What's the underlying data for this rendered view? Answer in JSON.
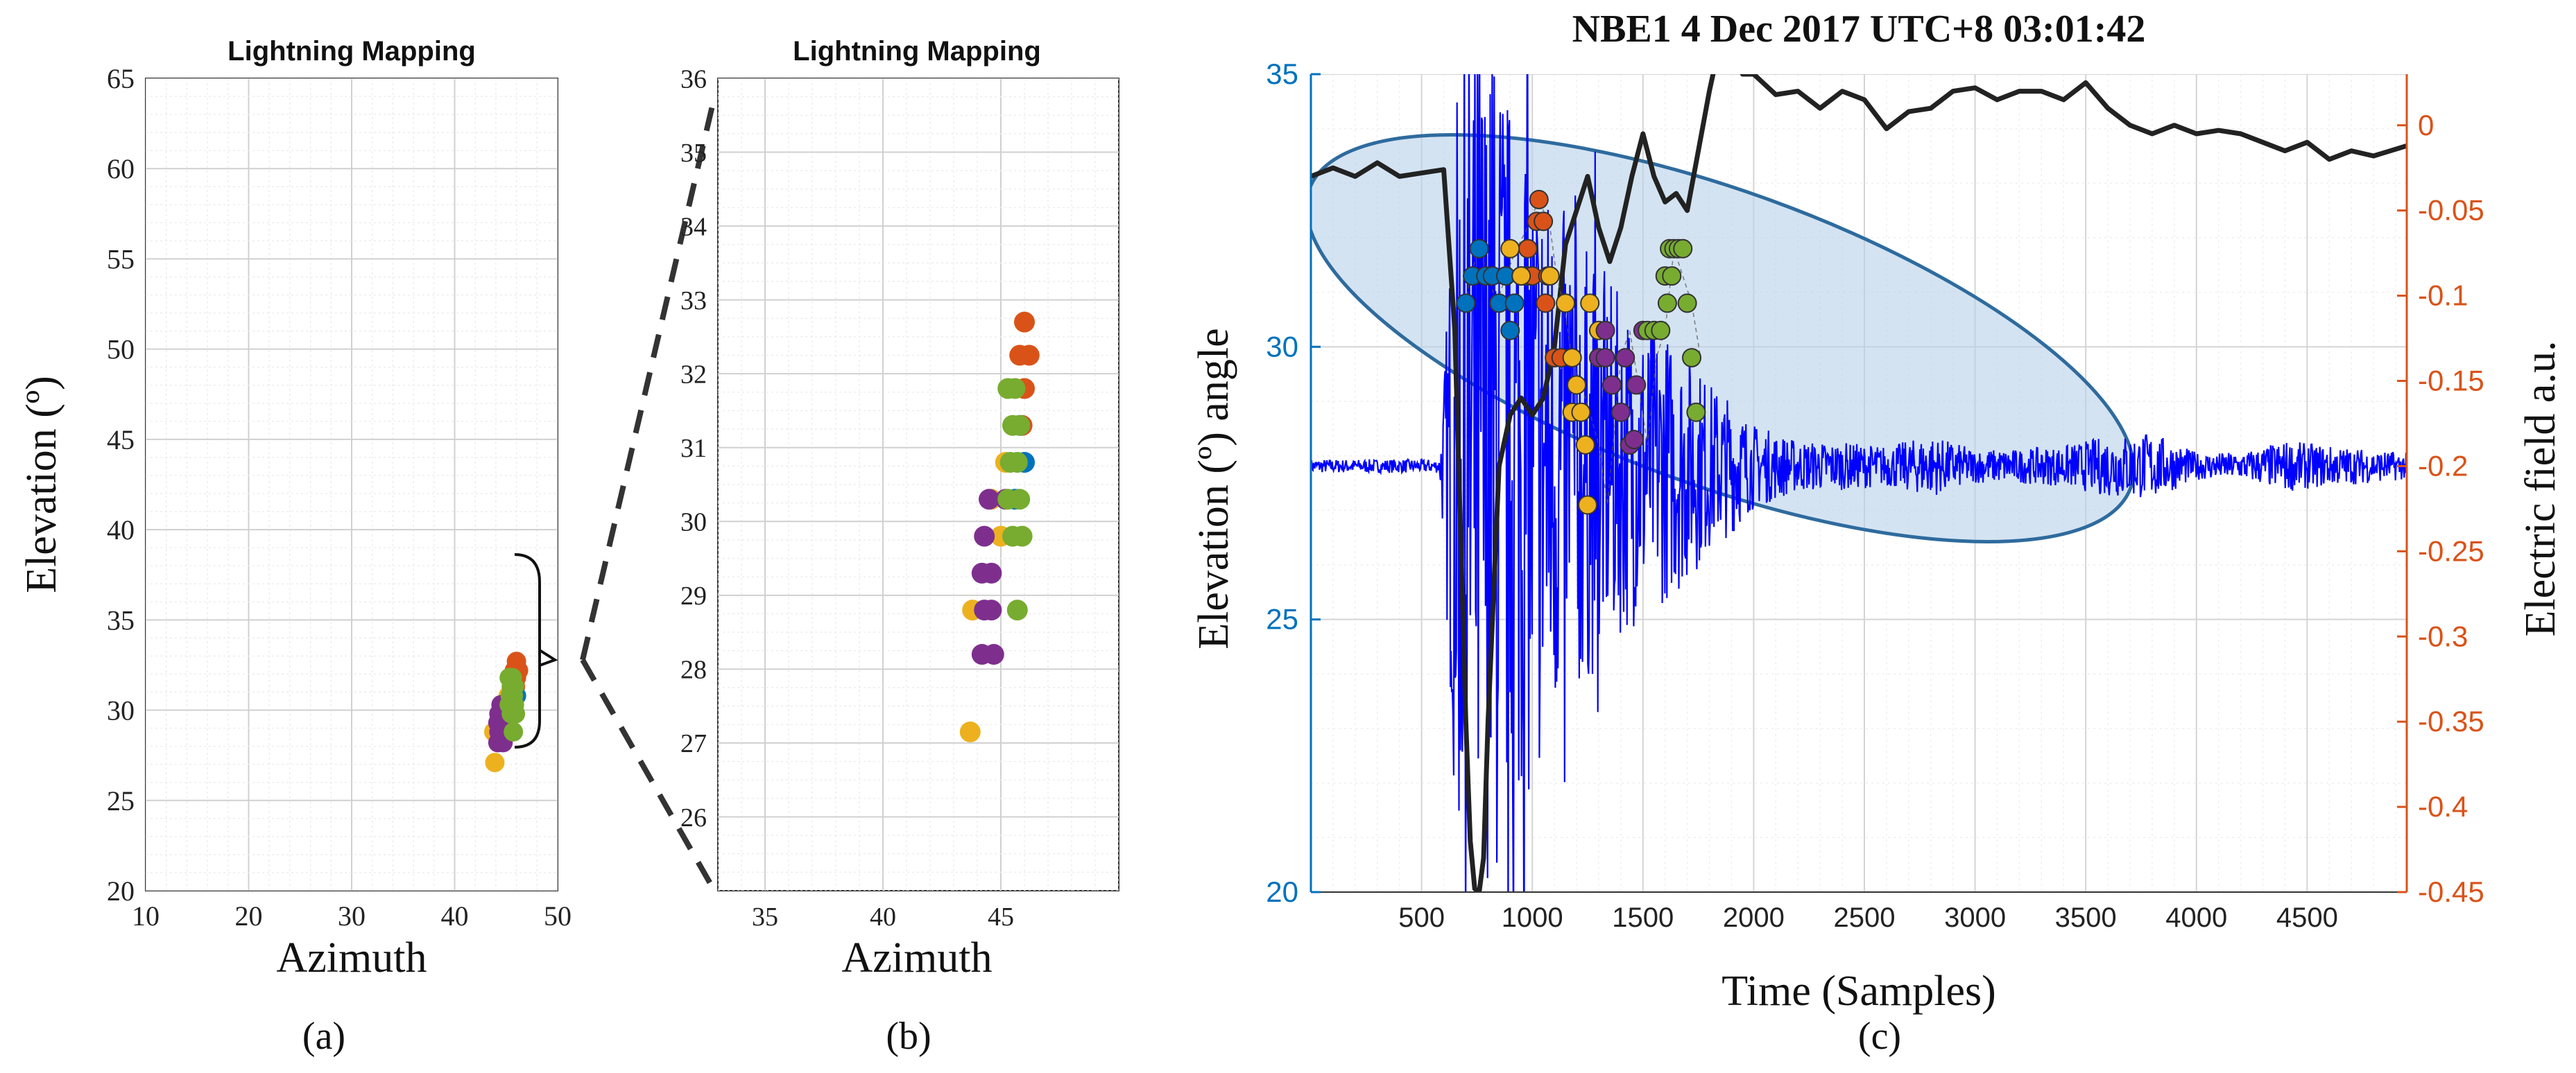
{
  "figure": {
    "captions": [
      "(a)",
      "(b)",
      "(c)"
    ]
  },
  "colors": {
    "blue": "#0072bd",
    "orange": "#d95319",
    "yellow": "#edb120",
    "purple": "#7e2f8e",
    "green": "#77ac30",
    "signal": "#0000ff",
    "efield": "#222222",
    "left_axis": "#0072bd",
    "right_axis": "#d95319",
    "ellipse_fill": "#b8d1ea",
    "ellipse_stroke": "#2e6b9e"
  },
  "chart_data": [
    {
      "id": "a",
      "type": "scatter",
      "title": "Lightning Mapping",
      "xlabel": "Azimuth",
      "ylabel": "Elevation (º)",
      "xlim": [
        10,
        50
      ],
      "ylim": [
        20,
        65
      ],
      "xticks": [
        "10",
        "20",
        "30",
        "40",
        "50"
      ],
      "yticks": [
        "20",
        "25",
        "30",
        "35",
        "40",
        "45",
        "50",
        "55",
        "60",
        "65"
      ],
      "grid": true,
      "annotation": "bracket marking the 26–34° cluster, zoomed in panel (b)",
      "series": [
        {
          "color": "orange",
          "points": [
            [
              46.0,
              32.7
            ],
            [
              45.8,
              32.2
            ],
            [
              46.2,
              32.2
            ],
            [
              46.0,
              31.8
            ],
            [
              45.9,
              31.3
            ]
          ]
        },
        {
          "color": "blue",
          "points": [
            [
              46.0,
              30.8
            ],
            [
              45.8,
              31.2
            ],
            [
              45.6,
              30.3
            ]
          ]
        },
        {
          "color": "yellow",
          "points": [
            [
              43.8,
              28.8
            ],
            [
              43.9,
              27.1
            ],
            [
              45.2,
              30.8
            ],
            [
              45.0,
              29.8
            ],
            [
              44.6,
              30.3
            ]
          ]
        },
        {
          "color": "purple",
          "points": [
            [
              44.5,
              30.3
            ],
            [
              44.3,
              29.8
            ],
            [
              44.2,
              29.3
            ],
            [
              44.6,
              29.3
            ],
            [
              44.3,
              28.8
            ],
            [
              44.6,
              28.8
            ],
            [
              44.2,
              28.2
            ],
            [
              44.7,
              28.2
            ],
            [
              45.2,
              30.3
            ]
          ]
        },
        {
          "color": "green",
          "points": [
            [
              45.3,
              31.8
            ],
            [
              45.6,
              31.8
            ],
            [
              45.5,
              31.3
            ],
            [
              45.8,
              31.3
            ],
            [
              45.4,
              30.8
            ],
            [
              45.7,
              30.8
            ],
            [
              45.3,
              30.3
            ],
            [
              45.8,
              30.3
            ],
            [
              45.5,
              29.8
            ],
            [
              45.9,
              29.8
            ],
            [
              45.7,
              28.8
            ]
          ]
        }
      ]
    },
    {
      "id": "b",
      "type": "scatter",
      "title": "Lightning Mapping",
      "xlabel": "Azimuth",
      "xlim": [
        33,
        50
      ],
      "ylim": [
        25,
        36
      ],
      "xticks": [
        "35",
        "40",
        "45"
      ],
      "yticks": [
        "26",
        "27",
        "28",
        "29",
        "30",
        "31",
        "32",
        "33",
        "34",
        "35",
        "36"
      ],
      "grid": true,
      "series": [
        {
          "color": "orange",
          "points": [
            [
              46.0,
              32.7
            ],
            [
              45.8,
              32.25
            ],
            [
              46.2,
              32.25
            ],
            [
              46.0,
              31.8
            ],
            [
              45.9,
              31.3
            ]
          ]
        },
        {
          "color": "blue",
          "points": [
            [
              46.0,
              30.8
            ],
            [
              45.8,
              31.3
            ],
            [
              45.6,
              30.3
            ]
          ]
        },
        {
          "color": "yellow",
          "points": [
            [
              43.8,
              28.8
            ],
            [
              43.7,
              27.15
            ],
            [
              45.2,
              30.8
            ],
            [
              45.0,
              29.8
            ],
            [
              44.6,
              30.3
            ]
          ]
        },
        {
          "color": "purple",
          "points": [
            [
              44.5,
              30.3
            ],
            [
              44.3,
              29.8
            ],
            [
              44.2,
              29.3
            ],
            [
              44.6,
              29.3
            ],
            [
              44.3,
              28.8
            ],
            [
              44.6,
              28.8
            ],
            [
              44.2,
              28.2
            ],
            [
              44.7,
              28.2
            ],
            [
              45.2,
              30.3
            ]
          ]
        },
        {
          "color": "green",
          "points": [
            [
              45.3,
              31.8
            ],
            [
              45.6,
              31.8
            ],
            [
              45.5,
              31.3
            ],
            [
              45.8,
              31.3
            ],
            [
              45.4,
              30.8
            ],
            [
              45.7,
              30.8
            ],
            [
              45.3,
              30.3
            ],
            [
              45.8,
              30.3
            ],
            [
              45.5,
              29.8
            ],
            [
              45.9,
              29.8
            ],
            [
              45.7,
              28.8
            ]
          ]
        }
      ]
    },
    {
      "id": "c",
      "type": "line",
      "title": "NBE1 4 Dec 2017 UTC+8 03:01:42",
      "xlabel": "Time (Samples)",
      "ylabel": "Elevation (º) angle",
      "ylabel_right": "Electric field a.u.",
      "xlim": [
        0,
        4950
      ],
      "ylim": [
        20,
        35
      ],
      "ylim_right": [
        -0.45,
        0.03
      ],
      "xticks": [
        "500",
        "1000",
        "1500",
        "2000",
        "2500",
        "3000",
        "3500",
        "4000",
        "4500"
      ],
      "yticks": [
        "20",
        "25",
        "30",
        "35"
      ],
      "yticks_right": [
        "0",
        "-0.05",
        "-0.1",
        "-0.15",
        "-0.2",
        "-0.25",
        "-0.3",
        "-0.35",
        "-0.4",
        "-0.45"
      ],
      "grid": true,
      "efield_trace": {
        "x": [
          0,
          100,
          200,
          300,
          400,
          500,
          600,
          650,
          700,
          720,
          740,
          760,
          780,
          800,
          850,
          900,
          950,
          1000,
          1050,
          1100,
          1150,
          1200,
          1250,
          1300,
          1350,
          1400,
          1450,
          1500,
          1550,
          1600,
          1650,
          1700,
          1750,
          1800,
          1850,
          1900,
          1950,
          2000,
          2100,
          2200,
          2300,
          2400,
          2500,
          2600,
          2700,
          2800,
          2900,
          3000,
          3100,
          3200,
          3300,
          3400,
          3500,
          3600,
          3700,
          3800,
          3900,
          4000,
          4100,
          4200,
          4300,
          4400,
          4500,
          4600,
          4700,
          4800,
          4950
        ],
        "y": [
          -0.03,
          -0.025,
          -0.03,
          -0.022,
          -0.03,
          -0.028,
          -0.026,
          -0.12,
          -0.35,
          -0.42,
          -0.448,
          -0.45,
          -0.43,
          -0.35,
          -0.2,
          -0.17,
          -0.16,
          -0.17,
          -0.16,
          -0.13,
          -0.07,
          -0.05,
          -0.03,
          -0.06,
          -0.08,
          -0.06,
          -0.03,
          -0.005,
          -0.03,
          -0.045,
          -0.04,
          -0.05,
          -0.015,
          0.02,
          0.05,
          0.048,
          0.03,
          0.03,
          0.018,
          0.02,
          0.01,
          0.02,
          0.015,
          -0.002,
          0.008,
          0.01,
          0.02,
          0.022,
          0.015,
          0.02,
          0.02,
          0.015,
          0.025,
          0.01,
          0.0,
          -0.005,
          0.0,
          -0.005,
          -0.003,
          -0.005,
          -0.01,
          -0.015,
          -0.01,
          -0.02,
          -0.015,
          -0.018,
          -0.012
        ]
      },
      "signal_trace": {
        "baseline": -0.2,
        "envelope_x": [
          0,
          580,
          600,
          650,
          700,
          750,
          800,
          850,
          900,
          1000,
          1100,
          1200,
          1300,
          1400,
          1500,
          1600,
          1700,
          1800,
          1900,
          2000,
          2200,
          2400,
          2600,
          2800,
          3000,
          3200,
          3400,
          3600,
          3800,
          4000,
          4200,
          4400,
          4600,
          4950
        ],
        "envelope_amp": [
          0.004,
          0.004,
          0.05,
          0.2,
          0.28,
          0.3,
          0.24,
          0.26,
          0.22,
          0.2,
          0.16,
          0.14,
          0.12,
          0.1,
          0.09,
          0.08,
          0.07,
          0.05,
          0.04,
          0.025,
          0.015,
          0.014,
          0.012,
          0.018,
          0.01,
          0.01,
          0.012,
          0.018,
          0.02,
          0.008,
          0.008,
          0.015,
          0.012,
          0.008
        ]
      },
      "mapping_line": {
        "x": [
          700,
          720,
          760,
          800,
          840,
          880,
          930,
          980,
          1030,
          1080,
          1110,
          1140,
          1180,
          1220,
          1260,
          1300,
          1340,
          1400,
          1440,
          1480,
          1520,
          1560,
          1600,
          1640,
          1680,
          1720,
          1760
        ],
        "y": [
          30.8,
          31.3,
          31.8,
          31.3,
          30.8,
          31.3,
          31.8,
          32.2,
          32.7,
          32.2,
          31.3,
          30.8,
          29.8,
          29.3,
          28.8,
          28.2,
          27.1,
          29.8,
          30.3,
          29.3,
          28.2,
          29.8,
          30.3,
          31.8,
          31.3,
          30.8,
          29.8
        ]
      },
      "series": [
        {
          "color": "blue",
          "points": [
            [
              700,
              30.8
            ],
            [
              730,
              31.3
            ],
            [
              760,
              31.8
            ],
            [
              790,
              31.3
            ],
            [
              820,
              31.3
            ],
            [
              850,
              30.8
            ],
            [
              880,
              31.3
            ],
            [
              900,
              30.3
            ],
            [
              920,
              30.8
            ],
            [
              950,
              31.3
            ],
            [
              980,
              31.3
            ]
          ]
        },
        {
          "color": "orange",
          "points": [
            [
              980,
              31.8
            ],
            [
              1000,
              31.3
            ],
            [
              1020,
              32.3
            ],
            [
              1030,
              32.7
            ],
            [
              1050,
              32.3
            ],
            [
              1070,
              31.3
            ],
            [
              1060,
              30.8
            ],
            [
              1100,
              29.8
            ],
            [
              1130,
              29.8
            ]
          ]
        },
        {
          "color": "yellow",
          "points": [
            [
              900,
              31.8
            ],
            [
              950,
              31.3
            ],
            [
              1080,
              31.3
            ],
            [
              1150,
              30.8
            ],
            [
              1180,
              29.8
            ],
            [
              1200,
              29.3
            ],
            [
              1180,
              28.8
            ],
            [
              1220,
              28.8
            ],
            [
              1240,
              28.2
            ],
            [
              1250,
              27.1
            ],
            [
              1260,
              30.8
            ],
            [
              1300,
              30.3
            ]
          ]
        },
        {
          "color": "purple",
          "points": [
            [
              1300,
              29.8
            ],
            [
              1330,
              29.8
            ],
            [
              1360,
              29.3
            ],
            [
              1400,
              28.8
            ],
            [
              1420,
              29.8
            ],
            [
              1440,
              28.2
            ],
            [
              1460,
              28.3
            ],
            [
              1470,
              29.3
            ],
            [
              1500,
              30.3
            ],
            [
              1330,
              30.3
            ]
          ]
        },
        {
          "color": "green",
          "points": [
            [
              1520,
              30.3
            ],
            [
              1550,
              30.3
            ],
            [
              1580,
              30.3
            ],
            [
              1600,
              31.3
            ],
            [
              1610,
              30.8
            ],
            [
              1630,
              31.3
            ],
            [
              1620,
              31.8
            ],
            [
              1640,
              31.8
            ],
            [
              1660,
              31.8
            ],
            [
              1680,
              31.8
            ],
            [
              1700,
              30.8
            ],
            [
              1720,
              29.8
            ],
            [
              1740,
              28.8
            ]
          ]
        }
      ]
    }
  ]
}
